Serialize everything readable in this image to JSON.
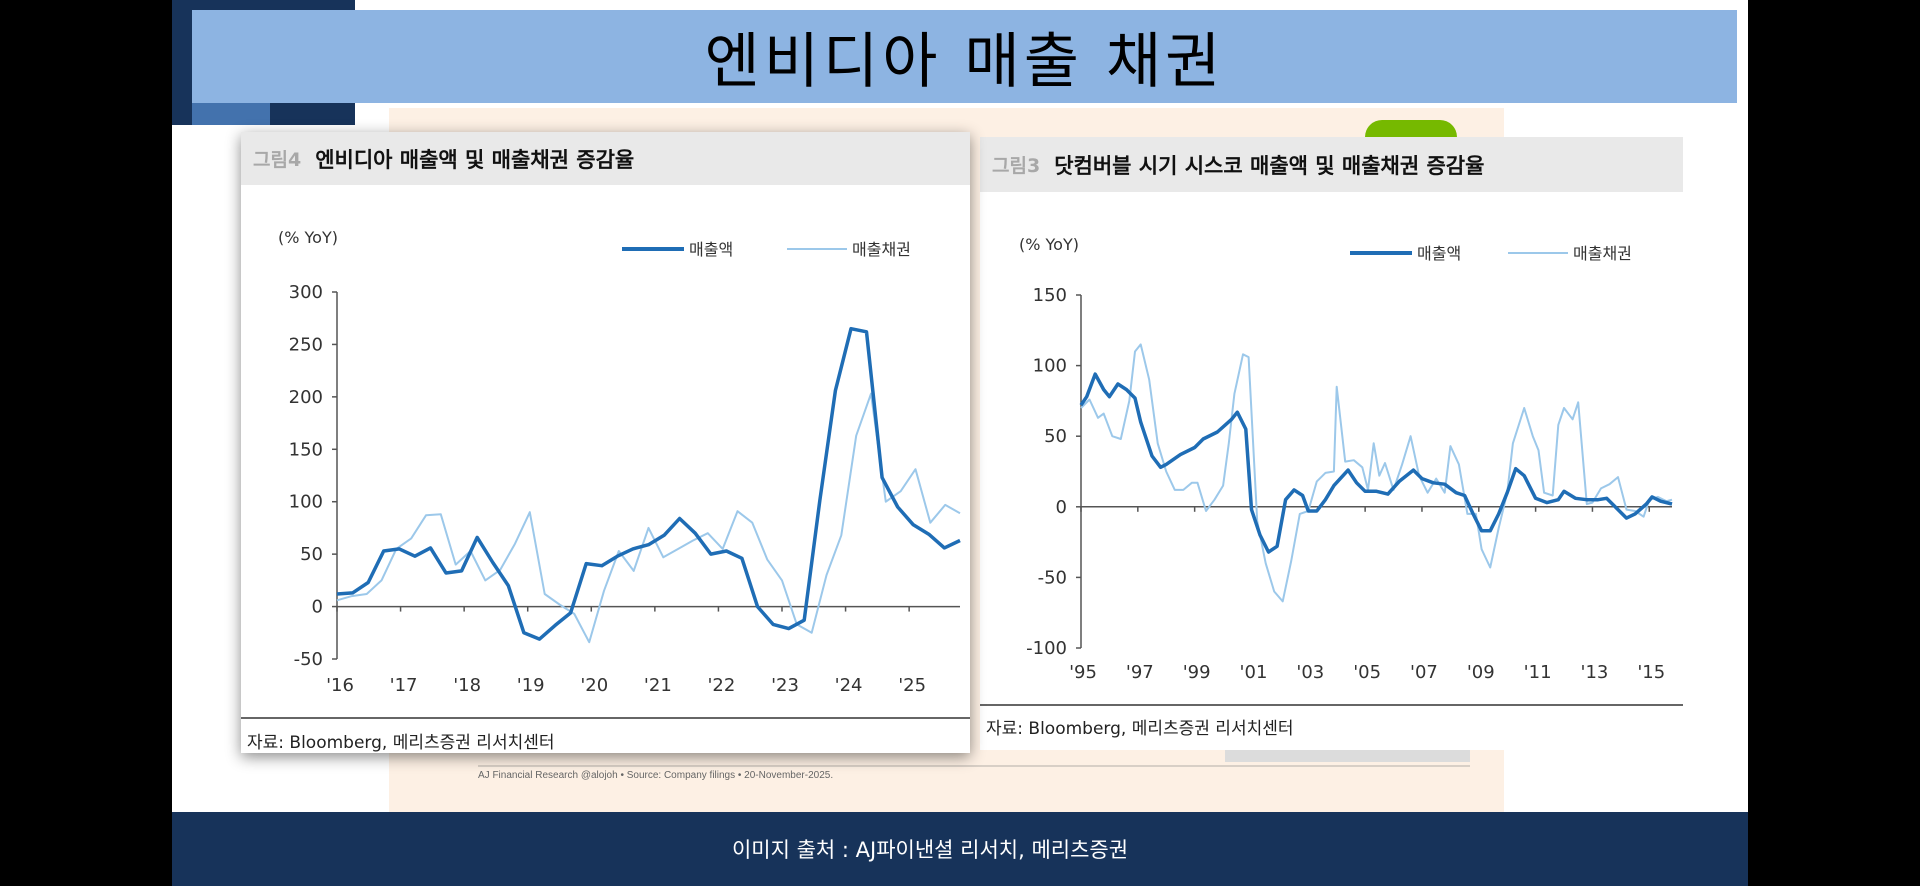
{
  "slide": {
    "title": "엔비디아 매출 채권",
    "footer_credit": "이미지 출처  : AJ파이낸셜 리서치, 메리츠증권",
    "background_footnote": "AJ Financial Research @alojoh • Source: Company filings • 20-November-2025."
  },
  "colors": {
    "revenue": "#1f6db5",
    "receivables": "#9cc8ea",
    "navy": "#17335a",
    "banner": "#8db4e2"
  },
  "chart_data": [
    {
      "type": "line",
      "figure_no": "그림4",
      "title": "엔비디아 매출액 및 매출채권 증감율",
      "ylabel": "(% YoY)",
      "ylim": [
        -50,
        300
      ],
      "yticks": [
        "300",
        "250",
        "200",
        "150",
        "100",
        "50",
        "0",
        "-50"
      ],
      "ytick_values": [
        300,
        250,
        200,
        150,
        100,
        50,
        0,
        -50
      ],
      "xlim": [
        2016,
        2025.8
      ],
      "xticks": [
        "'16",
        "'17",
        "'18",
        "'19",
        "'20",
        "'21",
        "'22",
        "'23",
        "'24",
        "'25"
      ],
      "xtick_values": [
        2016,
        2017,
        2018,
        2019,
        2020,
        2021,
        2022,
        2023,
        2024,
        2025
      ],
      "legend_position": "top-right",
      "source": "자료: Bloomberg, 메리츠증권 리서치센터",
      "series": [
        {
          "name": "매출액",
          "style": "thick",
          "values": [
            12,
            13,
            23,
            53,
            55,
            48,
            56,
            32,
            34,
            66,
            42,
            20,
            -25,
            -31,
            -18,
            -6,
            41,
            39,
            48,
            55,
            59,
            68,
            84,
            70,
            50,
            53,
            46,
            0,
            -17,
            -21,
            -13,
            101,
            206,
            265,
            262,
            123,
            95,
            78,
            69,
            56,
            63
          ]
        },
        {
          "name": "매출채권",
          "style": "thin",
          "values": [
            6,
            10,
            12,
            25,
            55,
            65,
            87,
            88,
            40,
            53,
            25,
            35,
            60,
            90,
            12,
            2,
            -7,
            -34,
            15,
            53,
            34,
            75,
            47,
            55,
            63,
            70,
            55,
            91,
            80,
            45,
            25,
            -17,
            -25,
            30,
            68,
            163,
            203,
            100,
            110,
            131,
            80,
            97,
            89
          ]
        }
      ]
    },
    {
      "type": "line",
      "figure_no": "그림3",
      "title": "닷컴버블 시기 시스코 매출액 및 매출채권 증감율",
      "ylabel": "(% YoY)",
      "ylim": [
        -100,
        150
      ],
      "yticks": [
        "150",
        "100",
        "50",
        "0",
        "-50",
        "-100"
      ],
      "ytick_values": [
        150,
        100,
        50,
        0,
        -50,
        -100
      ],
      "xlim": [
        1995,
        2015.8
      ],
      "xticks": [
        "'95",
        "'97",
        "'99",
        "'01",
        "'03",
        "'05",
        "'07",
        "'09",
        "'11",
        "'13",
        "'15"
      ],
      "xtick_values": [
        1995,
        1997,
        1999,
        2001,
        2003,
        2005,
        2007,
        2009,
        2011,
        2013,
        2015
      ],
      "legend_position": "top-right",
      "source": "자료: Bloomberg, 메리츠증권 리서치센터",
      "series": [
        {
          "name": "매출액",
          "style": "thick",
          "x": [
            1995.0,
            1995.2,
            1995.5,
            1995.8,
            1996.0,
            1996.3,
            1996.6,
            1996.9,
            1997.1,
            1997.5,
            1997.8,
            1998.0,
            1998.5,
            1999.0,
            1999.3,
            1999.8,
            2000.3,
            2000.5,
            2000.8,
            2001.0,
            2001.3,
            2001.6,
            2001.9,
            2002.2,
            2002.5,
            2002.8,
            2003.0,
            2003.3,
            2003.6,
            2003.9,
            2004.4,
            2004.7,
            2005.0,
            2005.4,
            2005.8,
            2006.2,
            2006.7,
            2007.0,
            2007.4,
            2007.8,
            2008.2,
            2008.5,
            2008.8,
            2009.1,
            2009.4,
            2009.7,
            2010.0,
            2010.3,
            2010.6,
            2011.0,
            2011.4,
            2011.8,
            2012.0,
            2012.4,
            2012.8,
            2013.2,
            2013.5,
            2013.9,
            2014.2,
            2014.5,
            2014.9,
            2015.1,
            2015.4,
            2015.8
          ],
          "values": [
            72,
            78,
            94,
            83,
            78,
            87,
            83,
            77,
            60,
            36,
            28,
            30,
            37,
            42,
            48,
            53,
            62,
            67,
            55,
            -2,
            -20,
            -32,
            -28,
            5,
            12,
            8,
            -3,
            -3,
            5,
            15,
            26,
            17,
            11,
            11,
            9,
            18,
            26,
            20,
            17,
            16,
            10,
            8,
            -5,
            -17,
            -17,
            -5,
            10,
            27,
            22,
            6,
            3,
            5,
            11,
            6,
            5,
            5,
            6,
            -2,
            -8,
            -5,
            2,
            7,
            4,
            2
          ]
        },
        {
          "name": "매출채권",
          "style": "thin",
          "x": [
            1995.0,
            1995.3,
            1995.6,
            1995.8,
            1996.1,
            1996.4,
            1996.7,
            1996.9,
            1997.1,
            1997.4,
            1997.7,
            1998.0,
            1998.3,
            1998.6,
            1998.9,
            1999.1,
            1999.4,
            1999.7,
            2000.0,
            2000.2,
            2000.4,
            2000.7,
            2000.9,
            2001.2,
            2001.5,
            2001.8,
            2002.1,
            2002.4,
            2002.7,
            2003.0,
            2003.3,
            2003.6,
            2003.9,
            2004.0,
            2004.3,
            2004.6,
            2004.9,
            2005.1,
            2005.3,
            2005.5,
            2005.7,
            2006.0,
            2006.3,
            2006.6,
            2006.9,
            2007.2,
            2007.5,
            2007.8,
            2008.0,
            2008.3,
            2008.6,
            2008.9,
            2009.1,
            2009.4,
            2009.7,
            2010.0,
            2010.2,
            2010.6,
            2010.9,
            2011.1,
            2011.3,
            2011.6,
            2011.8,
            2012.0,
            2012.3,
            2012.5,
            2012.8,
            2013.0,
            2013.3,
            2013.6,
            2013.9,
            2014.2,
            2014.5,
            2014.8,
            2015.0,
            2015.3,
            2015.6,
            2015.8
          ],
          "values": [
            70,
            76,
            63,
            66,
            50,
            48,
            75,
            110,
            115,
            90,
            45,
            25,
            12,
            12,
            17,
            17,
            -3,
            5,
            15,
            45,
            80,
            108,
            106,
            -10,
            -40,
            -60,
            -67,
            -38,
            -5,
            -3,
            18,
            24,
            25,
            85,
            32,
            33,
            28,
            12,
            45,
            22,
            31,
            12,
            30,
            50,
            22,
            10,
            20,
            10,
            43,
            30,
            -5,
            -5,
            -30,
            -43,
            -15,
            10,
            45,
            70,
            50,
            40,
            10,
            8,
            58,
            70,
            62,
            74,
            2,
            3,
            13,
            16,
            21,
            -2,
            -3,
            -7,
            5,
            7,
            4,
            5
          ]
        }
      ]
    }
  ]
}
